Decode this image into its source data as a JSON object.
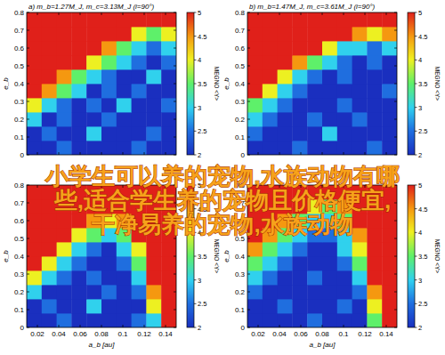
{
  "chart_data": [
    {
      "type": "heatmap",
      "title": "a) m_b=1.27M_J, m_c=3.13M_J (i=90°)",
      "y_label": "e_b",
      "x": [
        0.017,
        0.031,
        0.045,
        0.059,
        0.073,
        0.087,
        0.101,
        0.115,
        0.129,
        0.143
      ],
      "y": [
        0.04,
        0.12,
        0.2,
        0.28,
        0.36,
        0.44,
        0.52,
        0.6,
        0.68,
        0.76
      ],
      "cells": [
        [
          2,
          2,
          2.5,
          2,
          2,
          2,
          2,
          2.5,
          2,
          2
        ],
        [
          2,
          2.5,
          2,
          2,
          3,
          2,
          2,
          2,
          2.5,
          2
        ],
        [
          3,
          2,
          2.5,
          2,
          2,
          2.5,
          2,
          2,
          2,
          2
        ],
        [
          4,
          3,
          2.5,
          2,
          2.5,
          2,
          3,
          2,
          2,
          2.5
        ],
        [
          5,
          4.5,
          3.5,
          3,
          2,
          2.5,
          2,
          2.5,
          2,
          2
        ],
        [
          5,
          5,
          4.5,
          3.5,
          3,
          2.5,
          2,
          2,
          3,
          2
        ],
        [
          5,
          5,
          5,
          5,
          4,
          3.5,
          3,
          2.5,
          2,
          2.5
        ],
        [
          5,
          5,
          5,
          5,
          5,
          4.5,
          3.5,
          3,
          2.5,
          3
        ],
        [
          5,
          5,
          5,
          5,
          5,
          5,
          5,
          4,
          3.5,
          4
        ],
        [
          5,
          5,
          5,
          5,
          5,
          5,
          5,
          5,
          5,
          5
        ]
      ],
      "xlim": [
        0.01,
        0.15
      ],
      "xticks": [
        0.02,
        0.04,
        0.06,
        0.08,
        0.1,
        0.12,
        0.14
      ],
      "ylim": [
        0,
        0.8
      ],
      "yticks": [
        0,
        0.1,
        0.2,
        0.3,
        0.4,
        0.5,
        0.6,
        0.7,
        0.8
      ],
      "tick_labels": "y",
      "colorbar_label": "MEGNO <Y>",
      "colorbar_lim": [
        2,
        5
      ],
      "colorbar_ticks": [
        2,
        2.5,
        3,
        3.5,
        4,
        4.5,
        5
      ]
    },
    {
      "type": "heatmap",
      "title": "b) m_b=1.47M_J, m_c=3.61M_J (i=90°)",
      "y_label": "e_b",
      "x": [
        0.017,
        0.031,
        0.045,
        0.059,
        0.073,
        0.087,
        0.101,
        0.115,
        0.129,
        0.143
      ],
      "y": [
        0.04,
        0.12,
        0.2,
        0.28,
        0.36,
        0.44,
        0.52,
        0.6,
        0.68,
        0.76
      ],
      "cells": [
        [
          2,
          2,
          2,
          2.5,
          2,
          2,
          2,
          2,
          2.5,
          2
        ],
        [
          2.5,
          2,
          2,
          2,
          2,
          3,
          2,
          2,
          2,
          2
        ],
        [
          3,
          2.5,
          2,
          2,
          2.5,
          2,
          2,
          2.5,
          2,
          2
        ],
        [
          3.5,
          3,
          2.5,
          2,
          2,
          2,
          2.5,
          2,
          2,
          2
        ],
        [
          5,
          4,
          3,
          2.5,
          2,
          2,
          2,
          2,
          2,
          2.5
        ],
        [
          5,
          5,
          4,
          3,
          2.5,
          2,
          2.5,
          2,
          2,
          2
        ],
        [
          5,
          5,
          5,
          4.5,
          3.5,
          3,
          2.5,
          2,
          2.5,
          2
        ],
        [
          5,
          5,
          5,
          5,
          5,
          4,
          3,
          3,
          2.5,
          3
        ],
        [
          5,
          5,
          5,
          5,
          5,
          5,
          5,
          4.5,
          4,
          4.5
        ],
        [
          5,
          5,
          5,
          5,
          5,
          5,
          5,
          5,
          5,
          5
        ]
      ],
      "xlim": [
        0.01,
        0.15
      ],
      "xticks": [
        0.02,
        0.04,
        0.06,
        0.08,
        0.1,
        0.12,
        0.14
      ],
      "ylim": [
        0,
        0.8
      ],
      "yticks": [
        0,
        0.1,
        0.2,
        0.3,
        0.4,
        0.5,
        0.6,
        0.7,
        0.8
      ],
      "tick_labels": "y",
      "colorbar_label": "MEGNO <Y>",
      "colorbar_lim": [
        2,
        5
      ],
      "colorbar_ticks": [
        2,
        2.5,
        3,
        3.5,
        4,
        4.5,
        5
      ]
    },
    {
      "type": "heatmap",
      "x_label": "a_b [au]",
      "y_label": "e_b",
      "x": [
        0.017,
        0.031,
        0.045,
        0.059,
        0.073,
        0.087,
        0.101,
        0.115,
        0.129,
        0.143
      ],
      "y": [
        0.04,
        0.12,
        0.2,
        0.28,
        0.36,
        0.44,
        0.52,
        0.6,
        0.68,
        0.76
      ],
      "cells": [
        [
          2,
          2,
          2.5,
          2,
          2,
          2,
          2,
          2.5,
          3,
          5
        ],
        [
          2,
          2.5,
          2,
          2,
          3,
          2,
          2,
          2,
          4,
          5
        ],
        [
          3,
          2,
          2,
          2,
          2,
          2.5,
          2,
          2.5,
          4.5,
          5
        ],
        [
          4,
          3,
          2.5,
          2,
          2.5,
          2,
          2,
          3,
          5,
          5
        ],
        [
          5,
          4,
          3,
          2.5,
          2,
          2,
          2.5,
          3.5,
          5,
          5
        ],
        [
          5,
          5,
          4,
          3,
          2.5,
          2,
          3,
          4,
          5,
          5
        ],
        [
          5,
          5,
          5,
          4,
          3.5,
          3,
          3.5,
          5,
          5,
          5
        ],
        [
          5,
          5,
          5,
          5,
          4.5,
          4,
          4.5,
          5,
          5,
          5
        ],
        [
          5,
          5,
          5,
          5,
          5,
          5,
          5,
          5,
          5,
          5
        ],
        [
          5,
          5,
          5,
          5,
          5,
          5,
          5,
          5,
          5,
          5
        ]
      ],
      "xlim": [
        0.01,
        0.15
      ],
      "xticks": [
        0.02,
        0.04,
        0.06,
        0.08,
        0.1,
        0.12,
        0.14
      ],
      "ylim": [
        0,
        0.8
      ],
      "yticks": [
        0,
        0.1,
        0.2,
        0.3,
        0.4,
        0.5,
        0.6,
        0.7,
        0.8
      ],
      "colorbar_label": "MEGNO <Y>",
      "colorbar_lim": [
        2,
        5
      ],
      "colorbar_ticks": [
        2,
        2.5,
        3,
        3.5,
        4,
        4.5,
        5
      ]
    },
    {
      "type": "heatmap",
      "x_label": "a_b [au]",
      "y_label": "e_b",
      "x": [
        0.017,
        0.031,
        0.045,
        0.059,
        0.073,
        0.087,
        0.101,
        0.115,
        0.129,
        0.143
      ],
      "y": [
        0.04,
        0.12,
        0.2,
        0.28,
        0.36,
        0.44,
        0.52,
        0.6,
        0.68,
        0.76
      ],
      "cells": [
        [
          2,
          2,
          2,
          2,
          2.5,
          2,
          2,
          2,
          3.5,
          5
        ],
        [
          2,
          2,
          2.5,
          2,
          2,
          2,
          2.5,
          2,
          4,
          5
        ],
        [
          2.5,
          2,
          2,
          2,
          2,
          2,
          2,
          2.5,
          4.5,
          5
        ],
        [
          3,
          2.5,
          2,
          2,
          2.5,
          2,
          2,
          3,
          5,
          5
        ],
        [
          3.5,
          3,
          2.5,
          2,
          2,
          2,
          2.5,
          3.5,
          5,
          5
        ],
        [
          4.5,
          3.5,
          3,
          2.5,
          2,
          2,
          3,
          4,
          5,
          5
        ],
        [
          5,
          4.5,
          3.5,
          3,
          2.5,
          2.5,
          3,
          4.5,
          5,
          5
        ],
        [
          5,
          5,
          4.5,
          3.5,
          3,
          3,
          3.5,
          5,
          5,
          5
        ],
        [
          5,
          5,
          5,
          5,
          4,
          3.5,
          4.5,
          5,
          5,
          5
        ],
        [
          5,
          5,
          5,
          5,
          5,
          5,
          5,
          5,
          5,
          5
        ]
      ],
      "xlim": [
        0.01,
        0.15
      ],
      "xticks": [
        0.02,
        0.04,
        0.06,
        0.08,
        0.1,
        0.12,
        0.14
      ],
      "ylim": [
        0,
        0.8
      ],
      "yticks": [
        0,
        0.1,
        0.2,
        0.3,
        0.4,
        0.5,
        0.6,
        0.7,
        0.8
      ],
      "colorbar_label": "MEGNO <Y>",
      "colorbar_lim": [
        2,
        5
      ],
      "colorbar_ticks": [
        2,
        2.5,
        3,
        3.5,
        4,
        4.5,
        5
      ]
    }
  ],
  "watermark": [
    "小学生可以养的宠物,水族动物有哪",
    "些,适合学生养的宠物且价格便宜,",
    "干净易养的宠物,水族动物"
  ]
}
